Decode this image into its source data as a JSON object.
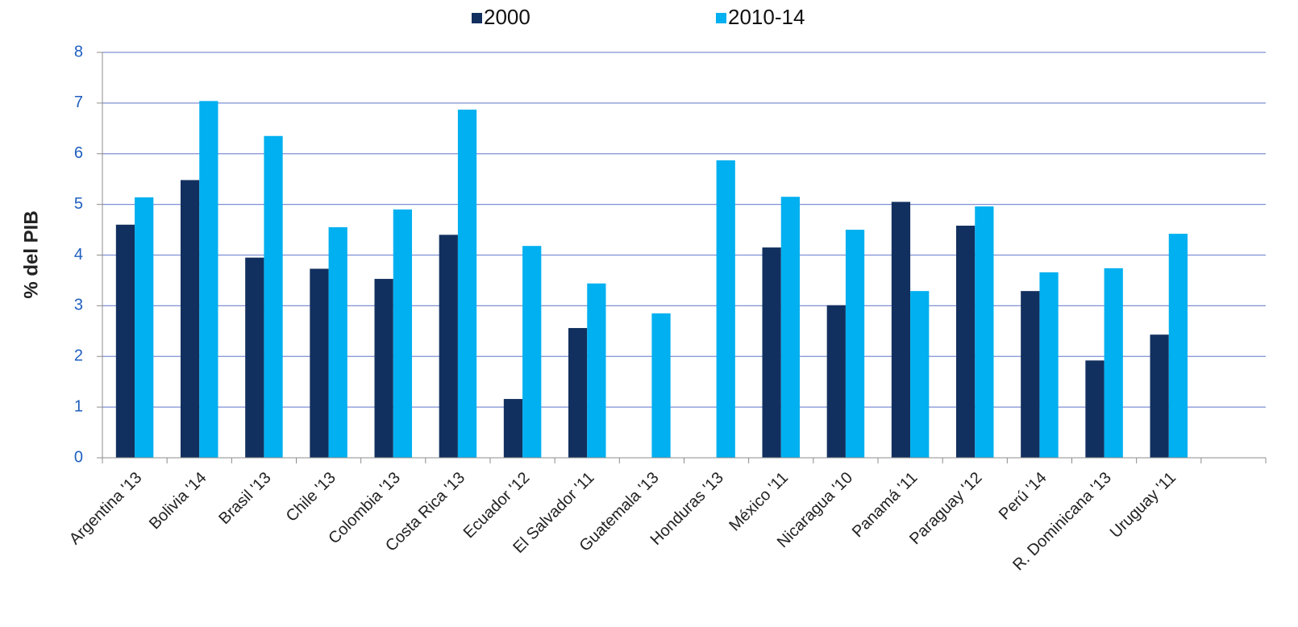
{
  "chart_data": {
    "type": "bar",
    "y_label": "% del PIB",
    "categories": [
      "Argentina '13",
      "Bolivia '14",
      "Brasil '13",
      "Chile '13",
      "Colombia '13",
      "Costa Rica '13",
      "Ecuador '12",
      "El Salvador '11",
      "Guatemala '13",
      "Honduras '13",
      "México '11",
      "Nicaragua '10",
      "Panamá '11",
      "Paraguay '12",
      "Perú '14",
      "R. Dominicana '13",
      "Uruguay '11",
      null
    ],
    "series": [
      {
        "name": "2000",
        "color": "#12305f",
        "values": [
          4.6,
          5.48,
          3.95,
          3.73,
          3.53,
          4.4,
          1.16,
          2.56,
          null,
          null,
          4.15,
          3.01,
          5.05,
          4.58,
          3.29,
          1.92,
          2.43,
          null
        ]
      },
      {
        "name": "2010-14",
        "color": "#00b0f0",
        "values": [
          5.14,
          7.04,
          6.35,
          4.55,
          4.9,
          6.87,
          4.18,
          3.44,
          2.85,
          5.87,
          5.15,
          4.5,
          3.29,
          4.96,
          3.66,
          3.74,
          4.42,
          null
        ]
      }
    ],
    "ylim": [
      0,
      8
    ],
    "yticks": [
      0,
      1,
      2,
      3,
      4,
      5,
      6,
      7,
      8
    ],
    "grid": true,
    "legend": "top"
  }
}
